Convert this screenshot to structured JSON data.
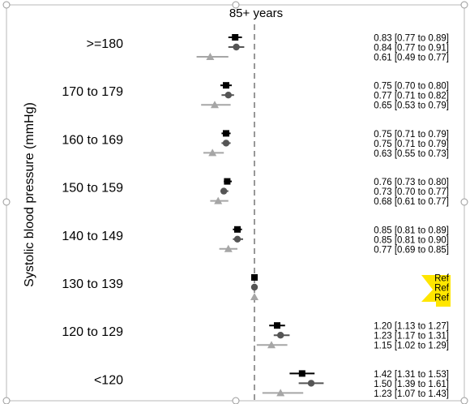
{
  "chart_data": {
    "type": "forest",
    "title": "85+ years",
    "ylabel": "Systolic blood pressure (mmHg)",
    "reference_line": 1.0,
    "xlim": [
      0.47,
      1.78
    ],
    "series": [
      {
        "name": "",
        "marker": "square",
        "color": "#000000"
      },
      {
        "name": "",
        "marker": "circle",
        "color": "#555555"
      },
      {
        "name": "",
        "marker": "triangle",
        "color": "#a6a6a6"
      }
    ],
    "categories": [
      {
        "label": ">=180",
        "rows": [
          {
            "est": 0.83,
            "lo": 0.77,
            "hi": 0.89,
            "text": "0.83 [0.77 to 0.89]"
          },
          {
            "est": 0.84,
            "lo": 0.77,
            "hi": 0.91,
            "text": "0.84 [0.77 to 0.91]"
          },
          {
            "est": 0.61,
            "lo": 0.49,
            "hi": 0.77,
            "text": "0.61 [0.49 to 0.77]"
          }
        ]
      },
      {
        "label": "170 to 179",
        "rows": [
          {
            "est": 0.75,
            "lo": 0.7,
            "hi": 0.8,
            "text": "0.75 [0.70 to 0.80]"
          },
          {
            "est": 0.77,
            "lo": 0.71,
            "hi": 0.82,
            "text": "0.77 [0.71 to 0.82]"
          },
          {
            "est": 0.65,
            "lo": 0.53,
            "hi": 0.79,
            "text": "0.65 [0.53 to 0.79]"
          }
        ]
      },
      {
        "label": "160 to 169",
        "rows": [
          {
            "est": 0.75,
            "lo": 0.71,
            "hi": 0.79,
            "text": "0.75 [0.71 to 0.79]"
          },
          {
            "est": 0.75,
            "lo": 0.71,
            "hi": 0.79,
            "text": "0.75 [0.71 to 0.79]"
          },
          {
            "est": 0.63,
            "lo": 0.55,
            "hi": 0.73,
            "text": "0.63 [0.55 to 0.73]"
          }
        ]
      },
      {
        "label": "150 to 159",
        "rows": [
          {
            "est": 0.76,
            "lo": 0.73,
            "hi": 0.8,
            "text": "0.76 [0.73 to 0.80]"
          },
          {
            "est": 0.73,
            "lo": 0.7,
            "hi": 0.77,
            "text": "0.73 [0.70 to 0.77]"
          },
          {
            "est": 0.68,
            "lo": 0.61,
            "hi": 0.77,
            "text": "0.68 [0.61 to 0.77]"
          }
        ]
      },
      {
        "label": "140 to 149",
        "rows": [
          {
            "est": 0.85,
            "lo": 0.81,
            "hi": 0.89,
            "text": "0.85 [0.81 to 0.89]"
          },
          {
            "est": 0.85,
            "lo": 0.81,
            "hi": 0.9,
            "text": "0.85 [0.81 to 0.90]"
          },
          {
            "est": 0.77,
            "lo": 0.69,
            "hi": 0.85,
            "text": "0.77 [0.69 to 0.85]"
          }
        ]
      },
      {
        "label": "130 to 139",
        "rows": [
          {
            "est": 1.0,
            "lo": 1.0,
            "hi": 1.0,
            "text": "Ref"
          },
          {
            "est": 1.0,
            "lo": 1.0,
            "hi": 1.0,
            "text": "Ref"
          },
          {
            "est": 1.0,
            "lo": 1.0,
            "hi": 1.0,
            "text": "Ref"
          }
        ]
      },
      {
        "label": "120 to 129",
        "rows": [
          {
            "est": 1.2,
            "lo": 1.13,
            "hi": 1.27,
            "text": "1.20 [1.13 to 1.27]"
          },
          {
            "est": 1.23,
            "lo": 1.17,
            "hi": 1.31,
            "text": "1.23 [1.17 to 1.31]"
          },
          {
            "est": 1.15,
            "lo": 1.02,
            "hi": 1.29,
            "text": "1.15 [1.02 to 1.29]"
          }
        ]
      },
      {
        "label": "<120",
        "rows": [
          {
            "est": 1.42,
            "lo": 1.31,
            "hi": 1.53,
            "text": "1.42 [1.31 to 1.53]"
          },
          {
            "est": 1.5,
            "lo": 1.39,
            "hi": 1.61,
            "text": "1.50 [1.39 to 1.61]"
          },
          {
            "est": 1.23,
            "lo": 1.07,
            "hi": 1.43,
            "text": "1.23 [1.07 to 1.43]"
          }
        ]
      }
    ],
    "ref_highlight_color": "#ffe600"
  }
}
